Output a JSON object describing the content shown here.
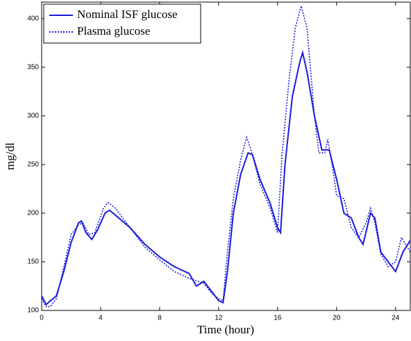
{
  "chart_data": {
    "type": "line",
    "xlabel": "Time (hour)",
    "ylabel": "mg/dl",
    "xlim": [
      0,
      25
    ],
    "ylim": [
      100,
      417
    ],
    "xticks": [
      0,
      4,
      8,
      12,
      16,
      20,
      24
    ],
    "yticks": [
      100,
      150,
      200,
      250,
      300,
      350,
      400
    ],
    "legend": "upper left",
    "series": [
      {
        "name": "Nominal ISF glucose",
        "color": "#1a1adb",
        "style": "solid",
        "x": [
          0,
          0.3,
          0.6,
          1,
          1.5,
          2,
          2.5,
          2.7,
          3,
          3.4,
          3.8,
          4.3,
          4.6,
          5,
          6,
          7,
          8,
          9,
          10,
          10.5,
          11,
          11.5,
          12,
          12.3,
          12.6,
          13,
          13.5,
          14,
          14.3,
          14.8,
          15.5,
          16,
          16.2,
          16.5,
          17,
          17.5,
          17.7,
          18,
          18.5,
          19,
          19.5,
          20,
          20.5,
          21,
          21.5,
          21.8,
          22.3,
          22.6,
          23,
          23.5,
          24,
          24.5,
          25
        ],
        "values": [
          115,
          106,
          110,
          115,
          140,
          170,
          190,
          192,
          180,
          173,
          183,
          200,
          203,
          198,
          185,
          168,
          155,
          145,
          138,
          125,
          130,
          120,
          110,
          108,
          140,
          200,
          240,
          262,
          260,
          235,
          210,
          185,
          180,
          250,
          320,
          355,
          365,
          345,
          300,
          265,
          265,
          235,
          200,
          195,
          175,
          168,
          200,
          195,
          160,
          150,
          140,
          160,
          172
        ]
      },
      {
        "name": "Plasma glucose",
        "color": "#1a1adb",
        "style": "dotted",
        "x": [
          0,
          0.3,
          0.6,
          1,
          1.5,
          2,
          2.5,
          2.8,
          3.2,
          3.6,
          4.2,
          4.5,
          5,
          6,
          7,
          8,
          9,
          10,
          11,
          11.5,
          12,
          12.3,
          12.6,
          13,
          13.5,
          13.9,
          14.2,
          14.8,
          15.5,
          16,
          16.3,
          16.8,
          17.2,
          17.6,
          18,
          18.5,
          18.8,
          19.2,
          19.4,
          19.8,
          20,
          20.5,
          21,
          21.5,
          22,
          22.3,
          22.6,
          23,
          23.5,
          24,
          24.4,
          25
        ],
        "values": [
          112,
          104,
          104,
          112,
          145,
          178,
          188,
          190,
          178,
          180,
          205,
          211,
          205,
          185,
          165,
          152,
          140,
          133,
          128,
          118,
          112,
          110,
          160,
          215,
          255,
          278,
          265,
          230,
          205,
          180,
          260,
          340,
          390,
          413,
          390,
          300,
          262,
          262,
          276,
          240,
          218,
          215,
          185,
          175,
          190,
          205,
          190,
          158,
          145,
          150,
          175,
          160
        ]
      }
    ]
  }
}
